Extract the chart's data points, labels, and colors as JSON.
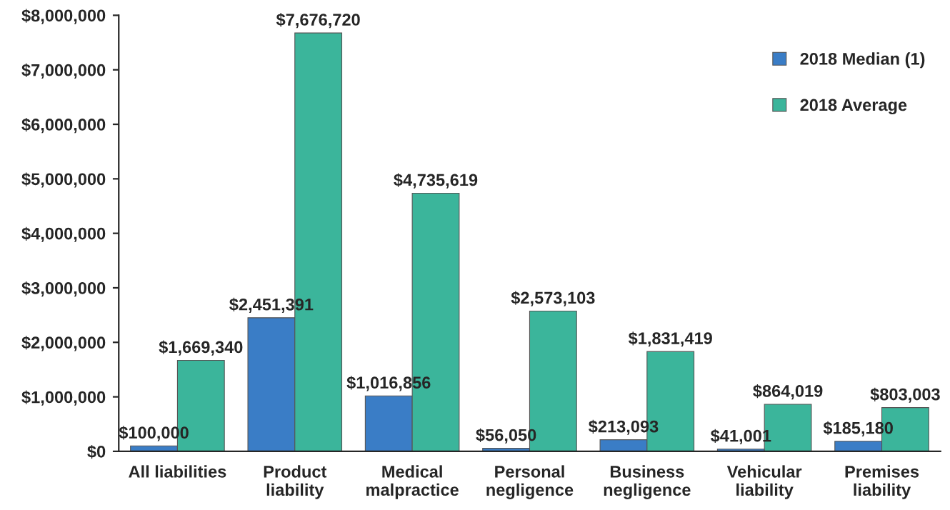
{
  "chart_data": {
    "type": "bar",
    "categories": [
      "All liabilities",
      "Product\nliability",
      "Medical\nmalpractice",
      "Personal\nnegligence",
      "Business\nnegligence",
      "Vehicular\nliability",
      "Premises\nliability"
    ],
    "series": [
      {
        "name": "2018 Median (1)",
        "color": "#3a7dc6",
        "values": [
          100000,
          2451391,
          1016856,
          56050,
          213093,
          41001,
          185180
        ],
        "value_labels": [
          "$100,000",
          "$2,451,391",
          "$1,016,856",
          "$56,050",
          "$213,093",
          "$41,001",
          "$185,180"
        ]
      },
      {
        "name": "2018 Average",
        "color": "#3bb59b",
        "values": [
          1669340,
          7676720,
          4735619,
          2573103,
          1831419,
          864019,
          803003
        ],
        "value_labels": [
          "$1,669,340",
          "$7,676,720",
          "$4,735,619",
          "$2,573,103",
          "$1,831,419",
          "$864,019",
          "$803,003"
        ]
      }
    ],
    "ylim": [
      0,
      8000000
    ],
    "yticks": [
      {
        "value": 0,
        "label": "$0"
      },
      {
        "value": 1000000,
        "label": "$1,000,000"
      },
      {
        "value": 2000000,
        "label": "$2,000,000"
      },
      {
        "value": 3000000,
        "label": "$3,000,000"
      },
      {
        "value": 4000000,
        "label": "$4,000,000"
      },
      {
        "value": 5000000,
        "label": "$5,000,000"
      },
      {
        "value": 6000000,
        "label": "$6,000,000"
      },
      {
        "value": 7000000,
        "label": "$7,000,000"
      },
      {
        "value": 8000000,
        "label": "$8,000,000"
      }
    ],
    "grid": false,
    "legend": "top right"
  }
}
